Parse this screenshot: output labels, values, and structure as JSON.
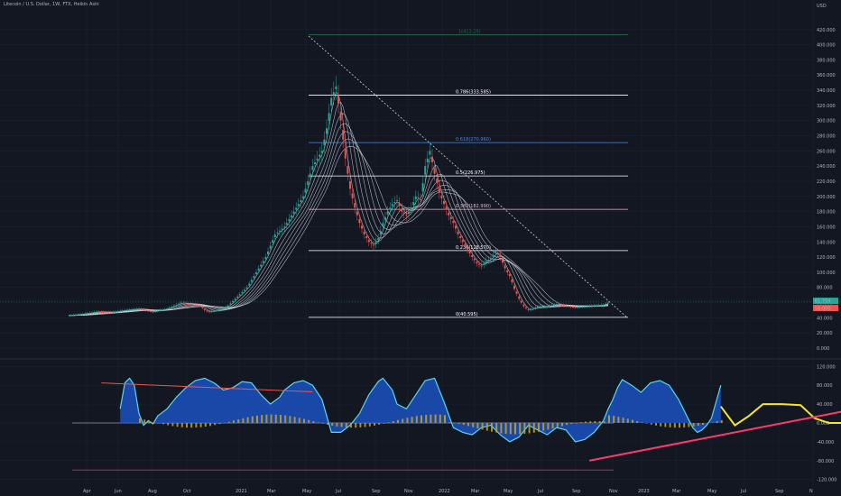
{
  "header": {
    "title": "Litecoin / U.S. Dollar, 1W, FTX, Heikin Ashi"
  },
  "price_axis": {
    "currency": "USD",
    "ticks": [
      "0.000",
      "20.000",
      "40.000",
      "60.000",
      "80.000",
      "100.000",
      "120.000",
      "140.000",
      "160.000",
      "180.000",
      "200.000",
      "220.000",
      "240.000",
      "260.000",
      "280.000",
      "300.000",
      "320.000",
      "340.000",
      "360.000",
      "380.000",
      "400.000",
      "420.000"
    ],
    "last_price_label": "61.759",
    "second_price_label": "56.000"
  },
  "osc_axis": {
    "ticks": [
      "120.000",
      "80.000",
      "40.000",
      "0.000",
      "-40.000",
      "-80.000",
      "-120.000"
    ]
  },
  "time_axis": {
    "labels": [
      "Apr",
      "Jun",
      "Aug",
      "Oct",
      "2021",
      "Mar",
      "May",
      "Jul",
      "Sep",
      "Nov",
      "2022",
      "Mar",
      "May",
      "Jul",
      "Sep",
      "Nov",
      "2023",
      "Mar",
      "May",
      "Jul",
      "Sep",
      "N"
    ]
  },
  "colors": {
    "background": "#131722",
    "grid": "#1e222d",
    "up": "#26a69a",
    "down": "#ef5350",
    "ribbon": "#dfe3ea",
    "wave_fill": "#1e5ad6",
    "wave_line": "#5bd6e8",
    "histogram": "#c9a227",
    "projection": "#f5e72b",
    "trendline": "#ff3b6b",
    "fib_blue": "#4c86e0",
    "fib_white": "#ffffff",
    "fib_pink": "#e8b7c8"
  },
  "chart_data": {
    "type": "candlestick",
    "y_unit": "USD",
    "ylim": [
      0,
      430
    ],
    "fib_levels": [
      {
        "label": "0.786(333.585)",
        "value": 333.585
      },
      {
        "label": "0.618(270.960)",
        "value": 270.96
      },
      {
        "label": "0.5(226.975)",
        "value": 226.975
      },
      {
        "label": "0.382(182.990)",
        "value": 182.99
      },
      {
        "label": "0.236(128.570)",
        "value": 128.57
      },
      {
        "label": "0(40.595)",
        "value": 40.595
      }
    ],
    "fib_top_label": "1(413.25)",
    "fib_top_value": 413.25,
    "price_path": [
      [
        0,
        43
      ],
      [
        6,
        45
      ],
      [
        12,
        48
      ],
      [
        18,
        47
      ],
      [
        24,
        50
      ],
      [
        30,
        52
      ],
      [
        36,
        48
      ],
      [
        42,
        52
      ],
      [
        48,
        60
      ],
      [
        52,
        58
      ],
      [
        56,
        56
      ],
      [
        58,
        50
      ],
      [
        60,
        48
      ],
      [
        64,
        50
      ],
      [
        68,
        56
      ],
      [
        72,
        68
      ],
      [
        76,
        80
      ],
      [
        80,
        100
      ],
      [
        84,
        120
      ],
      [
        88,
        150
      ],
      [
        92,
        160
      ],
      [
        96,
        180
      ],
      [
        100,
        200
      ],
      [
        104,
        240
      ],
      [
        108,
        260
      ],
      [
        110,
        290
      ],
      [
        112,
        330
      ],
      [
        114,
        345
      ],
      [
        116,
        300
      ],
      [
        118,
        250
      ],
      [
        120,
        210
      ],
      [
        122,
        185
      ],
      [
        124,
        165
      ],
      [
        126,
        150
      ],
      [
        128,
        140
      ],
      [
        130,
        135
      ],
      [
        132,
        145
      ],
      [
        134,
        165
      ],
      [
        136,
        180
      ],
      [
        138,
        190
      ],
      [
        140,
        195
      ],
      [
        142,
        180
      ],
      [
        144,
        175
      ],
      [
        146,
        185
      ],
      [
        148,
        200
      ],
      [
        150,
        195
      ],
      [
        152,
        240
      ],
      [
        154,
        260
      ],
      [
        156,
        230
      ],
      [
        158,
        205
      ],
      [
        160,
        190
      ],
      [
        162,
        175
      ],
      [
        164,
        165
      ],
      [
        166,
        150
      ],
      [
        168,
        140
      ],
      [
        170,
        130
      ],
      [
        172,
        120
      ],
      [
        174,
        112
      ],
      [
        176,
        108
      ],
      [
        178,
        115
      ],
      [
        180,
        118
      ],
      [
        182,
        128
      ],
      [
        184,
        120
      ],
      [
        186,
        105
      ],
      [
        188,
        95
      ],
      [
        190,
        78
      ],
      [
        192,
        65
      ],
      [
        194,
        55
      ],
      [
        196,
        50
      ],
      [
        198,
        52
      ],
      [
        200,
        55
      ],
      [
        204,
        55
      ],
      [
        208,
        58
      ],
      [
        212,
        56
      ],
      [
        216,
        54
      ],
      [
        220,
        55
      ],
      [
        224,
        56
      ],
      [
        228,
        57
      ],
      [
        230,
        60
      ]
    ],
    "oscillator": {
      "ylim": [
        -130,
        130
      ],
      "wave": [
        [
          22,
          30
        ],
        [
          24,
          85
        ],
        [
          26,
          95
        ],
        [
          28,
          80
        ],
        [
          30,
          20
        ],
        [
          32,
          -5
        ],
        [
          34,
          5
        ],
        [
          36,
          -2
        ],
        [
          38,
          15
        ],
        [
          42,
          30
        ],
        [
          46,
          55
        ],
        [
          50,
          75
        ],
        [
          54,
          90
        ],
        [
          58,
          95
        ],
        [
          62,
          85
        ],
        [
          66,
          70
        ],
        [
          70,
          75
        ],
        [
          74,
          88
        ],
        [
          78,
          85
        ],
        [
          82,
          60
        ],
        [
          86,
          40
        ],
        [
          90,
          55
        ],
        [
          92,
          70
        ],
        [
          96,
          85
        ],
        [
          100,
          90
        ],
        [
          104,
          80
        ],
        [
          108,
          50
        ],
        [
          112,
          -20
        ],
        [
          116,
          -20
        ],
        [
          120,
          -5
        ],
        [
          124,
          20
        ],
        [
          128,
          60
        ],
        [
          132,
          88
        ],
        [
          134,
          95
        ],
        [
          138,
          70
        ],
        [
          140,
          40
        ],
        [
          144,
          30
        ],
        [
          148,
          60
        ],
        [
          152,
          90
        ],
        [
          156,
          95
        ],
        [
          160,
          45
        ],
        [
          164,
          -10
        ],
        [
          168,
          -20
        ],
        [
          172,
          -25
        ],
        [
          176,
          -10
        ],
        [
          180,
          -5
        ],
        [
          184,
          -25
        ],
        [
          188,
          -40
        ],
        [
          192,
          -30
        ],
        [
          196,
          -5
        ],
        [
          200,
          -15
        ],
        [
          204,
          -25
        ],
        [
          208,
          -10
        ],
        [
          212,
          -15
        ],
        [
          216,
          -40
        ],
        [
          220,
          -35
        ],
        [
          224,
          -20
        ],
        [
          228,
          5
        ],
        [
          230,
          30
        ],
        [
          232,
          50
        ],
        [
          234,
          75
        ],
        [
          236,
          92
        ],
        [
          240,
          80
        ],
        [
          244,
          65
        ],
        [
          248,
          85
        ],
        [
          252,
          90
        ],
        [
          256,
          80
        ],
        [
          260,
          50
        ],
        [
          264,
          10
        ],
        [
          266,
          -10
        ],
        [
          268,
          -20
        ],
        [
          270,
          -15
        ],
        [
          272,
          -5
        ],
        [
          274,
          10
        ],
        [
          276,
          45
        ],
        [
          278,
          80
        ]
      ],
      "projection": [
        [
          278,
          35
        ],
        [
          284,
          -5
        ],
        [
          290,
          15
        ],
        [
          296,
          40
        ],
        [
          304,
          40
        ],
        [
          312,
          38
        ],
        [
          318,
          10
        ],
        [
          324,
          0
        ],
        [
          330,
          0
        ],
        [
          336,
          20
        ],
        [
          342,
          70
        ],
        [
          346,
          86
        ]
      ],
      "trendline": [
        [
          222,
          -80
        ],
        [
          344,
          38
        ]
      ]
    }
  }
}
